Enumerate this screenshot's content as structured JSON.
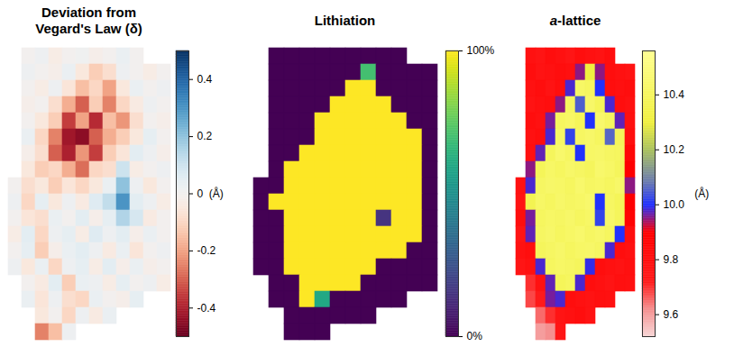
{
  "chart_data": [
    {
      "type": "heatmap",
      "title": "Deviation from Vegard's Law (δ)",
      "color": "RdBu",
      "tick_labels": false,
      "colorbar": {
        "label": "(Å)",
        "range": [
          -0.5,
          0.5
        ],
        "ticks": [
          -0.4,
          -0.2,
          0,
          0.2,
          0.4
        ]
      },
      "cells": [
        [
          null,
          0,
          0.02,
          -0.03,
          0,
          0.01,
          -0.02,
          0,
          0.03,
          0,
          null,
          null
        ],
        [
          null,
          0.02,
          0,
          -0.02,
          0.03,
          -0.05,
          -0.12,
          -0.08,
          0.02,
          0,
          -0.03,
          0
        ],
        [
          null,
          0,
          -0.03,
          0.02,
          -0.06,
          -0.15,
          -0.1,
          -0.2,
          -0.05,
          0.03,
          0,
          0.02
        ],
        [
          null,
          -0.02,
          0,
          -0.08,
          -0.18,
          -0.3,
          -0.12,
          -0.25,
          -0.1,
          -0.04,
          0.02,
          0
        ],
        [
          null,
          0,
          -0.05,
          -0.12,
          -0.35,
          -0.2,
          -0.38,
          -0.15,
          -0.22,
          -0.08,
          0,
          -0.02
        ],
        [
          null,
          0.03,
          -0.1,
          -0.25,
          -0.42,
          -0.45,
          -0.3,
          -0.18,
          -0.12,
          -0.05,
          0.04,
          0
        ],
        [
          null,
          -0.02,
          -0.08,
          -0.3,
          -0.4,
          -0.22,
          -0.35,
          -0.12,
          -0.06,
          0.05,
          0.02,
          -0.02
        ],
        [
          null,
          -0.05,
          -0.12,
          -0.1,
          -0.18,
          -0.28,
          -0.1,
          -0.08,
          0.1,
          -0.03,
          0,
          0.02
        ],
        [
          0,
          -0.08,
          -0.05,
          -0.12,
          -0.06,
          -0.1,
          -0.05,
          0.03,
          0.2,
          0.02,
          -0.05,
          0
        ],
        [
          0.02,
          -0.1,
          0.04,
          -0.05,
          0.02,
          -0.04,
          0.06,
          0.12,
          0.3,
          0.05,
          0.02,
          -0.03
        ],
        [
          0,
          -0.06,
          -0.08,
          0.03,
          0,
          0.05,
          -0.02,
          0.04,
          0.15,
          0.08,
          -0.04,
          0
        ],
        [
          -0.03,
          0.05,
          -0.1,
          0.02,
          0.04,
          -0.03,
          0.06,
          0.02,
          0.05,
          -0.02,
          0.03,
          0
        ],
        [
          0,
          0.04,
          -0.12,
          -0.02,
          0.03,
          0.05,
          0.02,
          -0.04,
          0.03,
          -0.06,
          0,
          0.02
        ],
        [
          0.02,
          -0.05,
          0.03,
          -0.1,
          0.02,
          0.04,
          -0.03,
          0.05,
          -0.02,
          0.03,
          -0.02,
          0
        ],
        [
          null,
          0,
          -0.04,
          0.05,
          -0.12,
          0.03,
          0.02,
          -0.03,
          0.04,
          0,
          0.02,
          -0.03
        ],
        [
          null,
          0.03,
          -0.06,
          0.02,
          -0.08,
          -0.1,
          0.03,
          0,
          -0.02,
          0.04,
          null,
          null
        ],
        [
          null,
          null,
          -0.05,
          0,
          -0.1,
          0.02,
          -0.04,
          0.03,
          null,
          null,
          null,
          null
        ],
        [
          null,
          null,
          -0.25,
          -0.15,
          0.02,
          null,
          null,
          null,
          null,
          null,
          null,
          null
        ]
      ]
    },
    {
      "type": "heatmap",
      "title": "Lithiation",
      "color": "Viridis",
      "tick_labels": false,
      "colorbar": {
        "range": [
          0,
          100
        ],
        "ticks": [
          {
            "value": 0,
            "label": "0%"
          },
          {
            "value": 100,
            "label": "100%"
          }
        ]
      },
      "cells": [
        [
          null,
          0,
          0,
          0,
          0,
          0,
          0,
          0,
          0,
          0,
          null,
          null
        ],
        [
          null,
          0,
          0,
          0,
          0,
          0,
          0,
          70,
          0,
          0,
          0,
          0
        ],
        [
          null,
          0,
          0,
          0,
          0,
          0,
          100,
          100,
          0,
          0,
          0,
          0
        ],
        [
          null,
          0,
          0,
          0,
          0,
          100,
          100,
          100,
          100,
          0,
          0,
          0
        ],
        [
          null,
          0,
          0,
          0,
          100,
          100,
          100,
          100,
          100,
          100,
          0,
          0
        ],
        [
          null,
          0,
          0,
          0,
          100,
          100,
          100,
          100,
          100,
          100,
          100,
          0
        ],
        [
          null,
          0,
          0,
          100,
          100,
          100,
          100,
          100,
          100,
          100,
          100,
          0
        ],
        [
          null,
          0,
          100,
          100,
          100,
          100,
          100,
          100,
          100,
          100,
          100,
          0
        ],
        [
          0,
          0,
          100,
          100,
          100,
          100,
          100,
          100,
          100,
          100,
          100,
          0
        ],
        [
          0,
          100,
          100,
          100,
          100,
          100,
          100,
          100,
          100,
          100,
          100,
          0
        ],
        [
          0,
          0,
          100,
          100,
          100,
          100,
          100,
          100,
          15,
          100,
          100,
          0
        ],
        [
          0,
          0,
          100,
          100,
          100,
          100,
          100,
          100,
          100,
          100,
          100,
          0
        ],
        [
          0,
          0,
          100,
          100,
          100,
          100,
          100,
          100,
          100,
          100,
          0,
          0
        ],
        [
          0,
          0,
          100,
          100,
          100,
          100,
          100,
          100,
          0,
          0,
          0,
          0
        ],
        [
          null,
          0,
          0,
          100,
          100,
          100,
          100,
          0,
          0,
          0,
          0,
          0
        ],
        [
          null,
          0,
          0,
          100,
          60,
          0,
          0,
          0,
          0,
          0,
          null,
          null
        ],
        [
          null,
          null,
          0,
          0,
          0,
          0,
          0,
          0,
          null,
          null,
          null,
          null
        ],
        [
          null,
          null,
          0,
          0,
          0,
          null,
          null,
          null,
          null,
          null,
          null,
          null
        ]
      ]
    },
    {
      "type": "heatmap",
      "title": "a-lattice",
      "tick_labels": false,
      "colorbar": {
        "label": "(Å)",
        "range": [
          9.52,
          10.56
        ],
        "ticks": [
          9.6,
          9.8,
          {
            "value": 10,
            "label": "10.0"
          },
          10.2,
          10.4
        ]
      },
      "cells": [
        [
          null,
          9.78,
          9.76,
          9.8,
          9.78,
          9.75,
          9.8,
          9.78,
          9.77,
          9.8,
          null,
          null
        ],
        [
          null,
          9.8,
          9.77,
          9.78,
          9.8,
          9.79,
          9.95,
          10.3,
          9.95,
          9.8,
          9.78,
          9.77
        ],
        [
          null,
          9.78,
          9.8,
          9.77,
          9.8,
          9.98,
          10.42,
          10.4,
          10,
          9.8,
          9.79,
          9.8
        ],
        [
          null,
          9.77,
          9.79,
          9.8,
          9.95,
          10.4,
          10.05,
          10.43,
          10.38,
          9.98,
          9.8,
          9.78
        ],
        [
          null,
          9.8,
          9.78,
          9.96,
          10.4,
          10.42,
          10.38,
          10,
          10.44,
          10.4,
          9.97,
          9.79
        ],
        [
          null,
          9.78,
          9.8,
          9.98,
          10.42,
          10.02,
          10.41,
          10.43,
          10.4,
          10.06,
          10.38,
          9.8
        ],
        [
          null,
          9.79,
          9.97,
          10.39,
          10.44,
          10.41,
          10,
          10.42,
          10.43,
          10.41,
          10.4,
          9.85
        ],
        [
          null,
          9.95,
          10.38,
          10.42,
          10.4,
          10.43,
          10.41,
          10.39,
          10.44,
          10.42,
          10.39,
          9.9
        ],
        [
          9.78,
          9.98,
          10.41,
          10.43,
          10.42,
          10.4,
          10.44,
          10.41,
          10.42,
          10.4,
          10.43,
          9.95
        ],
        [
          9.77,
          10.36,
          10.42,
          10.4,
          10.43,
          10.41,
          10.42,
          10.44,
          10,
          10.41,
          10.38,
          9.9
        ],
        [
          9.8,
          9.96,
          10.4,
          10.42,
          10.41,
          10.43,
          10.4,
          10.42,
          10.02,
          10.43,
          10.39,
          9.88
        ],
        [
          9.76,
          9.97,
          10.41,
          10.43,
          10.4,
          10.42,
          10.44,
          10.41,
          10.43,
          10.4,
          10,
          9.8
        ],
        [
          9.78,
          9.8,
          10.39,
          10.41,
          10.43,
          10.4,
          10.42,
          10.43,
          10.41,
          9.98,
          9.8,
          9.78
        ],
        [
          9.75,
          9.78,
          9.98,
          10.4,
          10.42,
          10.41,
          10.39,
          9.99,
          9.8,
          9.78,
          9.77,
          9.79
        ],
        [
          null,
          9.7,
          9.78,
          9.97,
          10.38,
          10.4,
          9.98,
          9.8,
          9.78,
          9.76,
          9.79,
          9.78
        ],
        [
          null,
          9.68,
          9.72,
          9.96,
          9.98,
          9.8,
          9.78,
          9.77,
          9.79,
          9.78,
          null,
          null
        ],
        [
          null,
          null,
          9.65,
          9.7,
          9.76,
          9.78,
          9.8,
          9.77,
          null,
          null,
          null,
          null
        ],
        [
          null,
          null,
          9.6,
          9.62,
          9.75,
          null,
          null,
          null,
          null,
          null,
          null,
          null
        ]
      ]
    }
  ]
}
